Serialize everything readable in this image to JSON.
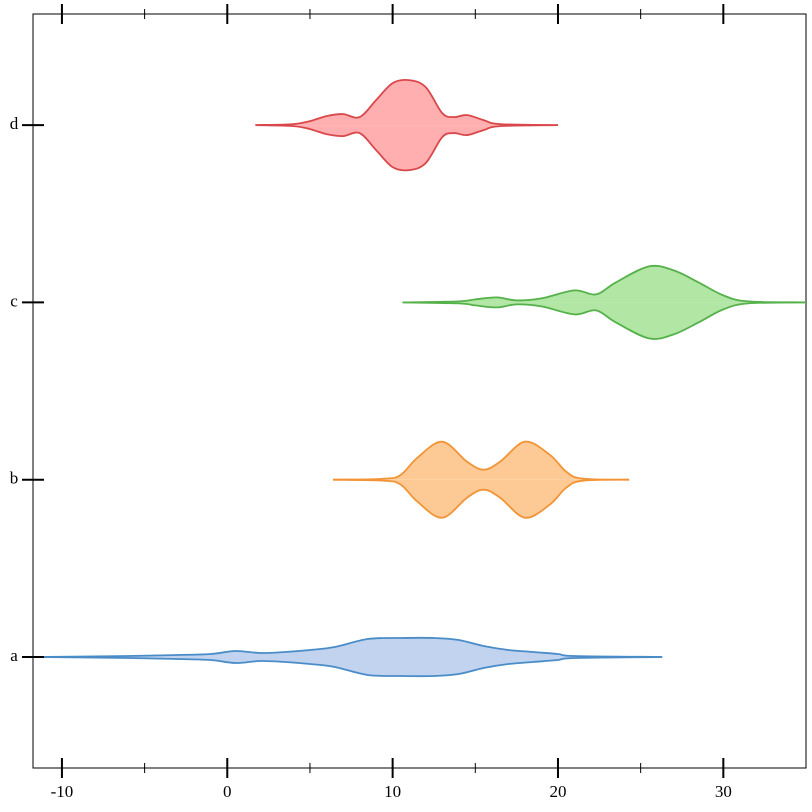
{
  "chart_data": {
    "type": "violin",
    "categories": [
      "a",
      "b",
      "c",
      "d"
    ],
    "xlim": [
      -11.75,
      35
    ],
    "xticks": [
      -10,
      {
        "value": -5,
        "label": null
      },
      0,
      {
        "value": 5,
        "label": null
      },
      10,
      {
        "value": 15,
        "label": null
      },
      20,
      {
        "value": 25,
        "label": null
      },
      30
    ],
    "series": [
      {
        "color": "#4a8cc7",
        "fill": "#c1d3ef",
        "x": [
          -11.6,
          -6,
          -3,
          -1,
          0.5,
          2,
          3.5,
          5,
          6.5,
          8.5,
          10.5,
          12.5,
          14,
          15.5,
          17,
          18.5,
          20,
          21,
          26.3
        ],
        "values": [
          0,
          0.01,
          0.02,
          0.03,
          0.06,
          0.04,
          0.05,
          0.07,
          0.1,
          0.18,
          0.19,
          0.19,
          0.17,
          0.11,
          0.07,
          0.05,
          0.03,
          0.01,
          0
        ]
      },
      {
        "color": "#f29436",
        "fill": "#fdc995",
        "x": [
          6.4,
          9.5,
          10.5,
          11.5,
          13,
          14.5,
          15.5,
          16.5,
          18,
          19.5,
          20.5,
          21.5,
          24.3
        ],
        "values": [
          0,
          0.01,
          0.05,
          0.22,
          0.38,
          0.18,
          0.1,
          0.18,
          0.38,
          0.25,
          0.08,
          0.01,
          0
        ]
      },
      {
        "color": "#55b14a",
        "fill": "#b2e6a4",
        "x": [
          10.6,
          14,
          15,
          16.3,
          17.5,
          19,
          21,
          22.3,
          23.5,
          25.5,
          27,
          28.5,
          30,
          31.5,
          35
        ],
        "values": [
          0,
          0.01,
          0.03,
          0.05,
          0.02,
          0.04,
          0.12,
          0.08,
          0.2,
          0.36,
          0.32,
          0.2,
          0.07,
          0.01,
          0
        ]
      },
      {
        "color": "#d9474a",
        "fill": "#ffafb0",
        "x": [
          1.7,
          4,
          5,
          6,
          7,
          8,
          9,
          10,
          11,
          12,
          13,
          13.7,
          14.5,
          15.5,
          16.5,
          20
        ],
        "values": [
          0,
          0.01,
          0.04,
          0.09,
          0.11,
          0.08,
          0.25,
          0.42,
          0.45,
          0.38,
          0.12,
          0.08,
          0.1,
          0.05,
          0.01,
          0
        ]
      }
    ]
  }
}
